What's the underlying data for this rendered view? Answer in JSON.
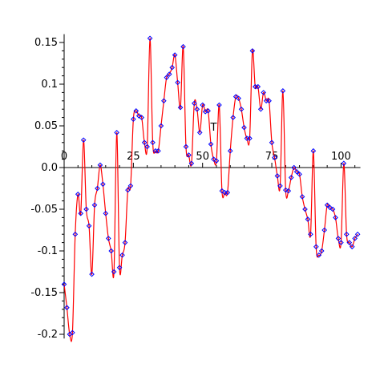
{
  "chart_data": {
    "type": "line",
    "title": "",
    "xlabel": "T",
    "ylabel": "",
    "xlim": [
      0,
      107
    ],
    "ylim": [
      -0.205,
      0.16
    ],
    "grid": false,
    "legend": "none",
    "x_ticks": [
      0,
      25,
      50,
      75,
      100
    ],
    "x_tick_labels": [
      "0",
      "25",
      "50",
      "75",
      "100"
    ],
    "y_ticks": [
      0.15,
      0.1,
      0.05,
      0.0,
      -0.05,
      -0.1,
      -0.15,
      -0.2
    ],
    "y_tick_labels": [
      "0.15",
      "0.1",
      "0.05",
      "0.0",
      "-0.05",
      "-0.1",
      "-0.15",
      "-0.2"
    ],
    "line_color": "#ff0000",
    "marker_color": "#0000ff",
    "series": [
      {
        "x": [
          0,
          1,
          2,
          3,
          4,
          5,
          6,
          7,
          8,
          9,
          10,
          11,
          12,
          13,
          14,
          15,
          16,
          17,
          18,
          19,
          20,
          21,
          22,
          23,
          24,
          25,
          26,
          27,
          28,
          29,
          30,
          31,
          32,
          33,
          34,
          35,
          36,
          37,
          38,
          39,
          40,
          41,
          42,
          43,
          44,
          45,
          46,
          47,
          48,
          49,
          50,
          51,
          52,
          53,
          54,
          55,
          56,
          57,
          58,
          59,
          60,
          61,
          62,
          63,
          64,
          65,
          66,
          67,
          68,
          69,
          70,
          71,
          72,
          73,
          74,
          75,
          76,
          77,
          78,
          79,
          80,
          81,
          82,
          83,
          84,
          85,
          86,
          87,
          88,
          89,
          90,
          91,
          92,
          93,
          94,
          95,
          96,
          97,
          98,
          99,
          100,
          101,
          102,
          103,
          104,
          105,
          106
        ],
        "y": [
          -0.14,
          -0.168,
          -0.2,
          -0.198,
          -0.08,
          -0.032,
          -0.055,
          0.033,
          -0.05,
          -0.07,
          -0.128,
          -0.045,
          -0.025,
          0.003,
          -0.02,
          -0.055,
          -0.085,
          -0.1,
          -0.125,
          0.042,
          -0.12,
          -0.105,
          -0.09,
          -0.027,
          -0.022,
          0.058,
          0.068,
          0.062,
          0.06,
          0.03,
          0.025,
          0.155,
          0.03,
          0.02,
          0.02,
          0.05,
          0.08,
          0.108,
          0.112,
          0.12,
          0.135,
          0.102,
          0.072,
          0.145,
          0.025,
          0.015,
          0.005,
          0.077,
          0.07,
          0.042,
          0.075,
          0.067,
          0.068,
          0.028,
          0.01,
          0.008,
          0.075,
          -0.028,
          -0.03,
          -0.03,
          0.02,
          0.06,
          0.085,
          0.083,
          0.07,
          0.048,
          0.035,
          0.035,
          0.14,
          0.097,
          0.097,
          0.07,
          0.09,
          0.08,
          0.08,
          0.03,
          0.012,
          -0.01,
          -0.022,
          0.092,
          -0.027,
          -0.028,
          -0.012,
          0.0,
          -0.005,
          -0.008,
          -0.035,
          -0.05,
          -0.062,
          -0.08,
          0.02,
          -0.095,
          -0.105,
          -0.1,
          -0.075,
          -0.045,
          -0.048,
          -0.05,
          -0.06,
          -0.085,
          -0.09,
          0.005,
          -0.08,
          -0.09,
          -0.095,
          -0.085,
          -0.08
        ]
      }
    ]
  }
}
